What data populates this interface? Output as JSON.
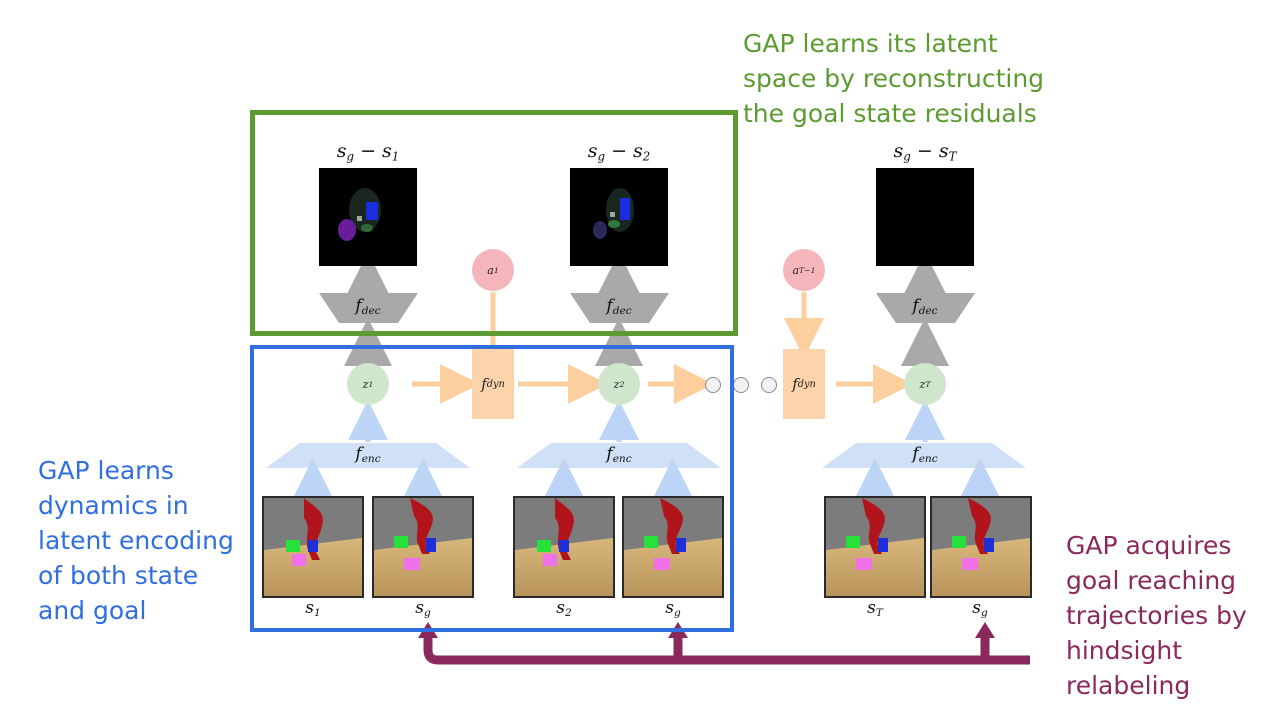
{
  "captions": {
    "green": [
      "GAP learns its latent",
      "space by reconstructing",
      "the goal state residuals"
    ],
    "blue": [
      "GAP learns",
      "dynamics in",
      "latent encoding",
      "of both state",
      "and goal"
    ],
    "purple": [
      "GAP acquires",
      "goal reaching",
      "trajectories by",
      "hindsight",
      "relabeling"
    ]
  },
  "residual_labels": [
    {
      "base": "s",
      "sub1": "g",
      "op": " − ",
      "base2": "s",
      "sub2": "1"
    },
    {
      "base": "s",
      "sub1": "g",
      "op": " − ",
      "base2": "s",
      "sub2": "2"
    },
    {
      "base": "s",
      "sub1": "g",
      "op": " − ",
      "base2": "s",
      "sub2": "T"
    }
  ],
  "decoder_label": {
    "base": "f",
    "sub": "dec"
  },
  "encoder_label": {
    "base": "f",
    "sub": "enc"
  },
  "dynamics_label": {
    "base": "f",
    "sub": "dyn"
  },
  "latents": [
    {
      "base": "z",
      "sub": "1"
    },
    {
      "base": "z",
      "sub": "2"
    },
    {
      "base": "z",
      "sub": "T"
    }
  ],
  "actions": [
    {
      "base": "a",
      "sub": "1"
    },
    {
      "base": "a",
      "sub": "T−1"
    }
  ],
  "input_labels": [
    {
      "base": "s",
      "sub": "1"
    },
    {
      "base": "s",
      "sub": "g"
    },
    {
      "base": "s",
      "sub": "2"
    },
    {
      "base": "s",
      "sub": "g"
    },
    {
      "base": "s",
      "sub": "T"
    },
    {
      "base": "s",
      "sub": "g"
    }
  ],
  "colors": {
    "green_frame": "#5b9b32",
    "blue_frame": "#2f6fe0",
    "relabel_arrow": "#8a2a5c",
    "decoder": "#a9a9a9",
    "encoder": "#cfe0f7",
    "dynamics": "#fdd3ab",
    "latent": "#cfe6cc",
    "action": "#f5b6bb"
  }
}
